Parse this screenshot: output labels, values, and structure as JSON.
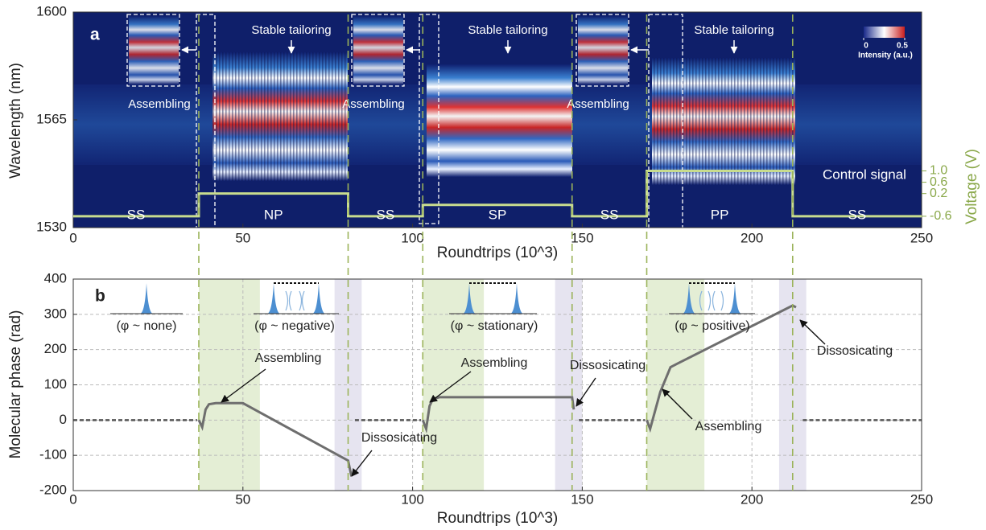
{
  "chart_data": [
    {
      "type": "heatmap",
      "panel_label": "a",
      "xlabel": "Roundtrips (10^3)",
      "ylabel": "Wavelength (nm)",
      "y2label": "Voltage (V)",
      "xlim": [
        0,
        250
      ],
      "xticks": [
        0,
        50,
        100,
        150,
        200,
        250
      ],
      "ylim": [
        1530,
        1600
      ],
      "yticks": [
        1530,
        1565,
        1600
      ],
      "y2lim": [
        -1.0,
        6.6
      ],
      "y2ticks": [
        -0.6,
        0.2,
        0.6,
        {
          "value": 1,
          "label": "1.0"
        }
      ],
      "colorbar": {
        "ticks": [
          0,
          0.5
        ],
        "label": "Intensity (a.u.)"
      },
      "series": [
        {
          "name": "Control signal",
          "color": "#c8dc8e",
          "axis": "y2",
          "x": [
            0,
            37,
            37,
            81,
            81,
            103,
            103,
            147,
            147,
            169,
            169,
            212,
            212,
            250
          ],
          "values": [
            -0.6,
            -0.6,
            0.2,
            0.2,
            -0.6,
            -0.6,
            -0.2,
            -0.2,
            -0.6,
            -0.6,
            1,
            1,
            -0.6,
            -0.6
          ]
        }
      ],
      "regions": [
        "SS",
        "NP",
        "SS",
        "SP",
        "SS",
        "PP",
        "SS"
      ],
      "annotations": [
        "Assembling",
        "Assembling",
        "Assembling",
        "Stable tailoring",
        "Stable tailoring",
        "Stable tailoring"
      ]
    },
    {
      "type": "line",
      "panel_label": "b",
      "xlabel": "Roundtrips (10^3)",
      "ylabel": "Molecular phase (rad)",
      "xlim": [
        0,
        250
      ],
      "xticks": [
        0,
        50,
        100,
        150,
        200,
        250
      ],
      "ylim": [
        -200,
        400
      ],
      "yticks": [
        -200,
        -100,
        0,
        100,
        200,
        300,
        400
      ],
      "grid": true,
      "x": [
        0,
        36.5,
        37,
        38,
        39,
        40,
        42,
        50,
        81,
        82,
        83,
        102.5,
        103,
        104,
        105,
        106,
        108,
        147,
        147.5,
        149,
        168.5,
        169,
        170,
        171,
        173,
        176,
        178,
        212,
        213,
        215,
        250
      ],
      "series": [
        {
          "color": "#555555",
          "style": "dashed",
          "values": [
            0,
            0,
            null,
            null,
            null,
            null,
            null,
            null,
            null,
            null,
            0,
            0,
            null,
            null,
            null,
            null,
            null,
            null,
            null,
            0,
            0,
            null,
            null,
            null,
            null,
            null,
            null,
            null,
            null,
            0,
            0
          ]
        },
        {
          "color": "#6e6e6e",
          "style": "solid",
          "values": [
            null,
            null,
            0,
            -20,
            30,
            45,
            48,
            48,
            -115,
            -160,
            null,
            null,
            0,
            -25,
            40,
            60,
            65,
            65,
            30,
            null,
            null,
            0,
            -25,
            10,
            80,
            150,
            160,
            325,
            320,
            null,
            null
          ]
        }
      ],
      "markers": [
        37,
        81,
        103,
        147,
        169,
        212
      ],
      "highlights": [
        {
          "x": [
            37,
            55
          ],
          "color": "#e4eed5"
        },
        {
          "x": [
            77,
            85
          ],
          "color": "#e6e4f0"
        },
        {
          "x": [
            103,
            121
          ],
          "color": "#e4eed5"
        },
        {
          "x": [
            142,
            150
          ],
          "color": "#e6e4f0"
        },
        {
          "x": [
            169,
            186
          ],
          "color": "#e4eed5"
        },
        {
          "x": [
            208,
            216
          ],
          "color": "#e6e4f0"
        }
      ],
      "phase_labels": [
        "(φ ~ none)",
        "(φ ~ negative)",
        "(φ ~ stationary)",
        "(φ ~ positive)"
      ],
      "annotations": [
        "Assembling",
        "Assembling",
        "Assembling",
        "Dissosicating",
        "Dissosicating",
        "Dissosicating"
      ]
    }
  ]
}
